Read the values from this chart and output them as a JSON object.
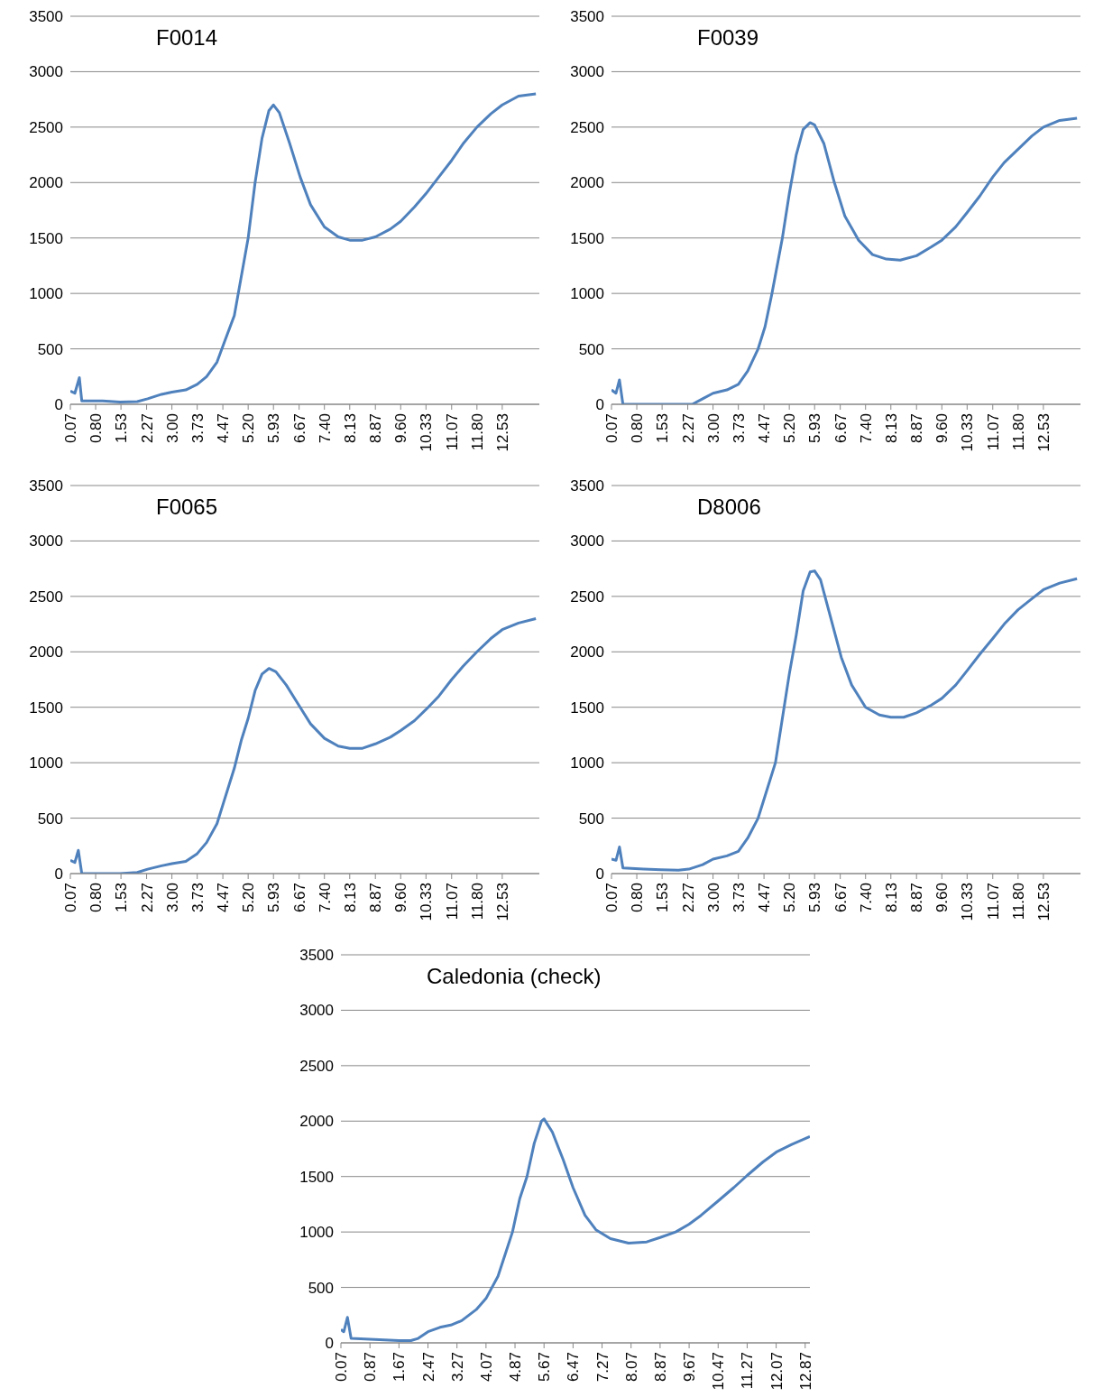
{
  "chart_data": [
    {
      "type": "line",
      "title": "F0014",
      "color": "#4f81bd",
      "grid": "y",
      "line_style": "solid",
      "xlim": [
        0.07,
        13.6
      ],
      "ylim": [
        0,
        3500
      ],
      "yticks": [
        0,
        500,
        1000,
        1500,
        2000,
        2500,
        3000,
        3500
      ],
      "xticks": [
        0.07,
        {
          "value": 0.8,
          "label": "0.80"
        },
        1.53,
        2.27,
        {
          "value": 3,
          "label": "3.00"
        },
        3.73,
        4.47,
        {
          "value": 5.2,
          "label": "5.20"
        },
        5.93,
        6.67,
        {
          "value": 7.4,
          "label": "7.40"
        },
        8.13,
        8.87,
        {
          "value": 9.6,
          "label": "9.60"
        },
        10.33,
        11.07,
        {
          "value": 11.8,
          "label": "11.80"
        },
        12.53
      ],
      "x": [
        0.07,
        0.2,
        0.33,
        0.4,
        1,
        1.5,
        2,
        2.3,
        2.7,
        3,
        3.4,
        3.73,
        4,
        4.3,
        4.5,
        4.8,
        5,
        5.2,
        5.4,
        5.6,
        5.8,
        5.93,
        6.1,
        6.4,
        6.7,
        7,
        7.4,
        7.8,
        8.13,
        8.5,
        8.87,
        9.3,
        9.6,
        10,
        10.33,
        10.7,
        11.07,
        11.4,
        11.8,
        12.2,
        12.53,
        13,
        13.5
      ],
      "values": [
        120,
        100,
        240,
        30,
        30,
        20,
        25,
        50,
        90,
        110,
        130,
        180,
        250,
        380,
        550,
        800,
        1150,
        1500,
        2000,
        2400,
        2650,
        2700,
        2630,
        2350,
        2050,
        1800,
        1600,
        1510,
        1480,
        1480,
        1510,
        1580,
        1650,
        1780,
        1900,
        2050,
        2200,
        2350,
        2500,
        2620,
        2700,
        2780,
        2800
      ]
    },
    {
      "type": "line",
      "title": "F0039",
      "color": "#4f81bd",
      "grid": "y",
      "line_style": "solid",
      "xlim": [
        0.07,
        13.6
      ],
      "ylim": [
        0,
        3500
      ],
      "yticks": [
        0,
        500,
        1000,
        1500,
        2000,
        2500,
        3000,
        3500
      ],
      "xticks": [
        0.07,
        {
          "value": 0.8,
          "label": "0.80"
        },
        1.53,
        2.27,
        {
          "value": 3,
          "label": "3.00"
        },
        3.73,
        4.47,
        {
          "value": 5.2,
          "label": "5.20"
        },
        5.93,
        6.67,
        {
          "value": 7.4,
          "label": "7.40"
        },
        8.13,
        8.87,
        {
          "value": 9.6,
          "label": "9.60"
        },
        10.33,
        11.07,
        {
          "value": 11.8,
          "label": "11.80"
        },
        12.53
      ],
      "x": [
        0.07,
        0.2,
        0.3,
        0.4,
        1,
        2,
        2.4,
        2.7,
        3,
        3.4,
        3.73,
        4,
        4.3,
        4.5,
        4.7,
        5,
        5.2,
        5.4,
        5.6,
        5.8,
        5.93,
        6.2,
        6.5,
        6.8,
        7.2,
        7.6,
        8,
        8.4,
        8.87,
        9.3,
        9.6,
        10,
        10.33,
        10.7,
        11.07,
        11.4,
        11.8,
        12.2,
        12.53,
        13,
        13.5
      ],
      "values": [
        130,
        100,
        220,
        0,
        0,
        0,
        0,
        50,
        100,
        130,
        180,
        300,
        500,
        700,
        1000,
        1500,
        1900,
        2250,
        2480,
        2540,
        2520,
        2350,
        2000,
        1700,
        1480,
        1350,
        1310,
        1300,
        1340,
        1420,
        1480,
        1600,
        1730,
        1880,
        2050,
        2180,
        2300,
        2420,
        2500,
        2560,
        2580
      ]
    },
    {
      "type": "line",
      "title": "F0065",
      "color": "#4f81bd",
      "grid": "y",
      "line_style": "solid",
      "xlim": [
        0.07,
        13.6
      ],
      "ylim": [
        0,
        3500
      ],
      "yticks": [
        0,
        500,
        1000,
        1500,
        2000,
        2500,
        3000,
        3500
      ],
      "xticks": [
        0.07,
        {
          "value": 0.8,
          "label": "0.80"
        },
        1.53,
        2.27,
        {
          "value": 3,
          "label": "3.00"
        },
        3.73,
        4.47,
        {
          "value": 5.2,
          "label": "5.20"
        },
        5.93,
        6.67,
        {
          "value": 7.4,
          "label": "7.40"
        },
        8.13,
        8.87,
        {
          "value": 9.6,
          "label": "9.60"
        },
        10.33,
        11.07,
        {
          "value": 11.8,
          "label": "11.80"
        },
        12.53
      ],
      "x": [
        0.07,
        0.2,
        0.3,
        0.4,
        1.5,
        2,
        2.3,
        2.7,
        3,
        3.4,
        3.73,
        4,
        4.3,
        4.5,
        4.8,
        5,
        5.2,
        5.4,
        5.6,
        5.8,
        6,
        6.3,
        6.7,
        7,
        7.4,
        7.8,
        8.13,
        8.5,
        8.87,
        9.3,
        9.6,
        10,
        10.33,
        10.7,
        11.07,
        11.4,
        11.8,
        12.2,
        12.53,
        13,
        13.5
      ],
      "values": [
        120,
        100,
        210,
        0,
        0,
        10,
        40,
        70,
        90,
        110,
        180,
        280,
        450,
        650,
        950,
        1200,
        1400,
        1650,
        1800,
        1850,
        1820,
        1700,
        1500,
        1350,
        1220,
        1150,
        1130,
        1130,
        1170,
        1230,
        1290,
        1380,
        1480,
        1600,
        1750,
        1870,
        2000,
        2120,
        2200,
        2260,
        2300
      ]
    },
    {
      "type": "line",
      "title": "D8006",
      "color": "#4f81bd",
      "grid": "y",
      "line_style": "solid",
      "xlim": [
        0.07,
        13.6
      ],
      "ylim": [
        0,
        3500
      ],
      "yticks": [
        0,
        500,
        1000,
        1500,
        2000,
        2500,
        3000,
        3500
      ],
      "xticks": [
        0.07,
        {
          "value": 0.8,
          "label": "0.80"
        },
        1.53,
        2.27,
        {
          "value": 3,
          "label": "3.00"
        },
        3.73,
        4.47,
        {
          "value": 5.2,
          "label": "5.20"
        },
        5.93,
        6.67,
        {
          "value": 7.4,
          "label": "7.40"
        },
        8.13,
        8.87,
        {
          "value": 9.6,
          "label": "9.60"
        },
        10.33,
        11.07,
        {
          "value": 11.8,
          "label": "11.80"
        },
        12.53
      ],
      "x": [
        0.07,
        0.2,
        0.3,
        0.4,
        1,
        1.5,
        2,
        2.3,
        2.7,
        3,
        3.4,
        3.73,
        4,
        4.3,
        4.5,
        4.8,
        5,
        5.2,
        5.4,
        5.6,
        5.8,
        5.93,
        6.1,
        6.4,
        6.7,
        7,
        7.4,
        7.8,
        8.13,
        8.5,
        8.87,
        9.3,
        9.6,
        10,
        10.33,
        10.7,
        11.07,
        11.4,
        11.8,
        12.2,
        12.53,
        13,
        13.5
      ],
      "values": [
        130,
        120,
        240,
        50,
        40,
        35,
        30,
        40,
        80,
        130,
        160,
        200,
        320,
        500,
        700,
        1000,
        1400,
        1800,
        2150,
        2550,
        2720,
        2730,
        2650,
        2300,
        1950,
        1700,
        1500,
        1430,
        1410,
        1410,
        1450,
        1520,
        1580,
        1700,
        1830,
        1980,
        2120,
        2250,
        2380,
        2480,
        2560,
        2620,
        2660
      ]
    },
    {
      "type": "line",
      "title": "Caledonia (check)",
      "color": "#4f81bd",
      "grid": "y",
      "line_style": "solid",
      "xlim": [
        0.07,
        13
      ],
      "ylim": [
        0,
        3500
      ],
      "yticks": [
        0,
        500,
        1000,
        1500,
        2000,
        2500,
        3000,
        3500
      ],
      "xticks": [
        0.07,
        0.87,
        1.67,
        2.47,
        3.27,
        4.07,
        4.87,
        5.67,
        6.47,
        7.27,
        8.07,
        8.87,
        9.67,
        10.47,
        11.27,
        12.07,
        12.87
      ],
      "x": [
        0.07,
        0.15,
        0.25,
        0.35,
        1,
        1.67,
        2,
        2.2,
        2.47,
        2.8,
        3.1,
        3.4,
        3.8,
        4.07,
        4.4,
        4.6,
        4.8,
        5,
        5.2,
        5.4,
        5.6,
        5.67,
        5.9,
        6.2,
        6.47,
        6.8,
        7.1,
        7.5,
        8,
        8.5,
        8.87,
        9.3,
        9.67,
        10,
        10.47,
        10.9,
        11.27,
        11.7,
        12.07,
        12.5,
        13
      ],
      "values": [
        120,
        100,
        230,
        40,
        30,
        20,
        20,
        40,
        100,
        140,
        160,
        200,
        300,
        400,
        600,
        800,
        1000,
        1300,
        1500,
        1800,
        2000,
        2020,
        1900,
        1650,
        1400,
        1150,
        1020,
        940,
        900,
        910,
        950,
        1000,
        1070,
        1150,
        1280,
        1400,
        1510,
        1630,
        1720,
        1790,
        1860
      ]
    }
  ]
}
